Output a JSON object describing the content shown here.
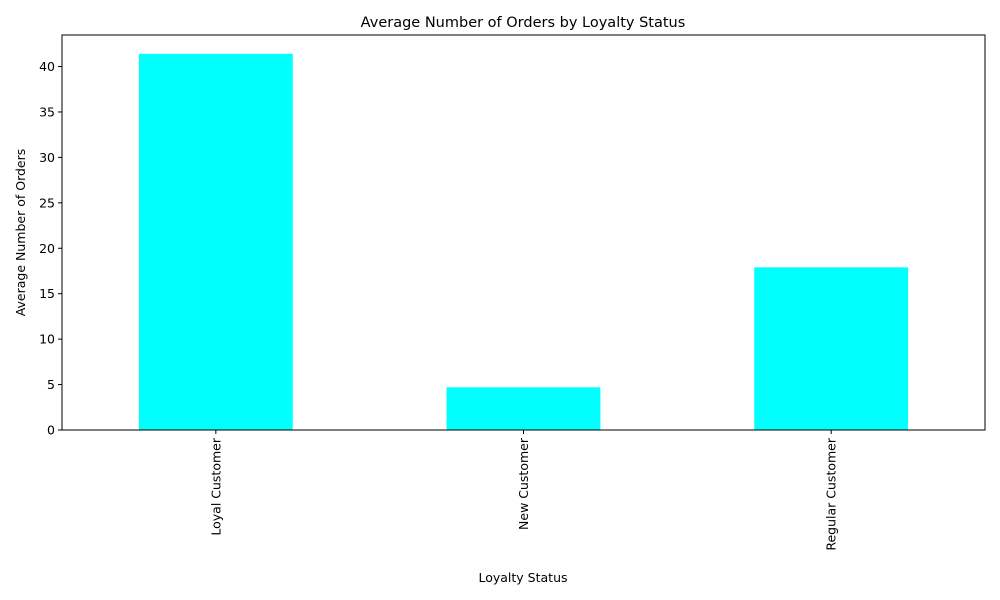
{
  "chart_data": {
    "type": "bar",
    "title": "Average Number of Orders by Loyalty Status",
    "xlabel": "Loyalty Status",
    "ylabel": "Average Number of Orders",
    "categories": [
      "Loyal Customer",
      "New Customer",
      "Regular Customer"
    ],
    "values": [
      41.4,
      4.7,
      17.9
    ],
    "ylim": [
      0,
      43.47
    ],
    "yticks": [
      0,
      5,
      10,
      15,
      20,
      25,
      30,
      35,
      40
    ],
    "bar_color": "#00ffff",
    "grid": false,
    "legend": "none"
  }
}
